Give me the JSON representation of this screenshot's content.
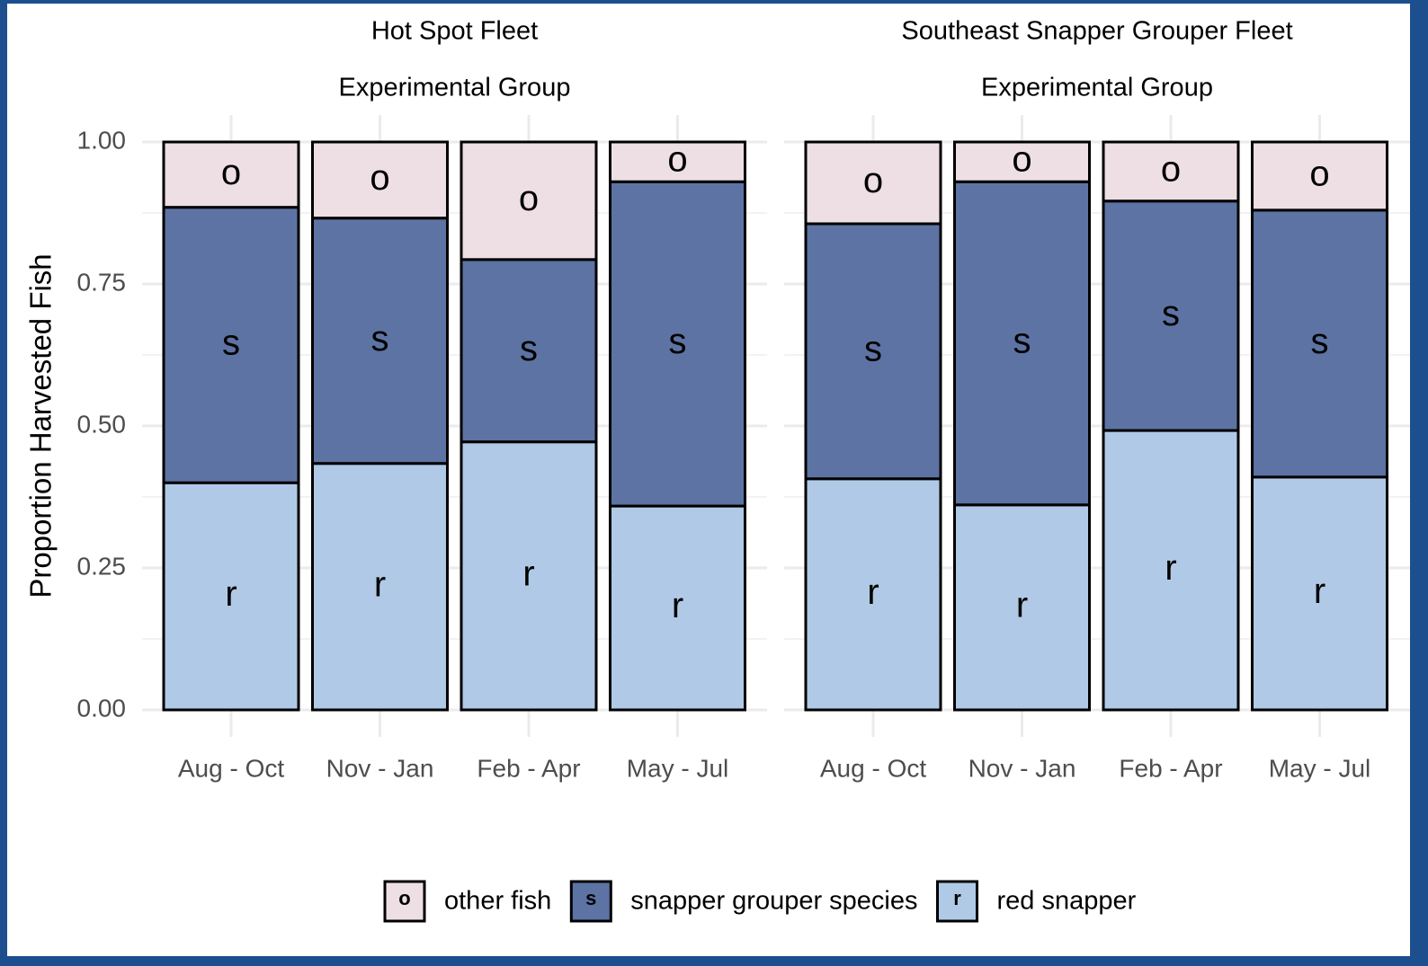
{
  "chart_data": [
    {
      "type": "stacked_bar",
      "title": "Hot Spot Fleet",
      "subtitle": "Experimental Group",
      "ylabel": "Proportion Harvested Fish",
      "categories": [
        "Aug - Oct",
        "Nov - Jan",
        "Feb - Apr",
        "May - Jul"
      ],
      "series": [
        {
          "name": "red snapper",
          "label": "r",
          "color": "#b0c9e6",
          "values": [
            0.4,
            0.434,
            0.472,
            0.359
          ]
        },
        {
          "name": "snapper grouper species",
          "label": "s",
          "color": "#5d73a3",
          "values": [
            0.485,
            0.432,
            0.321,
            0.571
          ]
        },
        {
          "name": "other fish",
          "label": "o",
          "color": "#eedfe5",
          "values": [
            0.115,
            0.134,
            0.207,
            0.07
          ]
        }
      ],
      "ylim": [
        0,
        1
      ],
      "yticks": [
        {
          "value": 0,
          "label": "0.00"
        },
        {
          "value": 0.25,
          "label": "0.25"
        },
        {
          "value": 0.5,
          "label": "0.50"
        },
        {
          "value": 0.75,
          "label": "0.75"
        },
        {
          "value": 1,
          "label": "1.00"
        }
      ],
      "grid": true
    },
    {
      "type": "stacked_bar",
      "title": "Southeast Snapper Grouper Fleet",
      "subtitle": "Experimental Group",
      "categories": [
        "Aug - Oct",
        "Nov - Jan",
        "Feb - Apr",
        "May - Jul"
      ],
      "series": [
        {
          "label": "r",
          "color": "#b0c9e6",
          "values": [
            0.407,
            0.361,
            0.492,
            0.41
          ]
        },
        {
          "label": "s",
          "color": "#5d73a3",
          "values": [
            0.449,
            0.569,
            0.404,
            0.47
          ]
        },
        {
          "label": "o",
          "color": "#eedfe5",
          "values": [
            0.144,
            0.07,
            0.104,
            0.12
          ]
        }
      ],
      "ylim": [
        0,
        1
      ],
      "yticks": [
        0,
        0.25,
        0.5,
        0.75,
        1
      ],
      "grid": true
    }
  ]
}
